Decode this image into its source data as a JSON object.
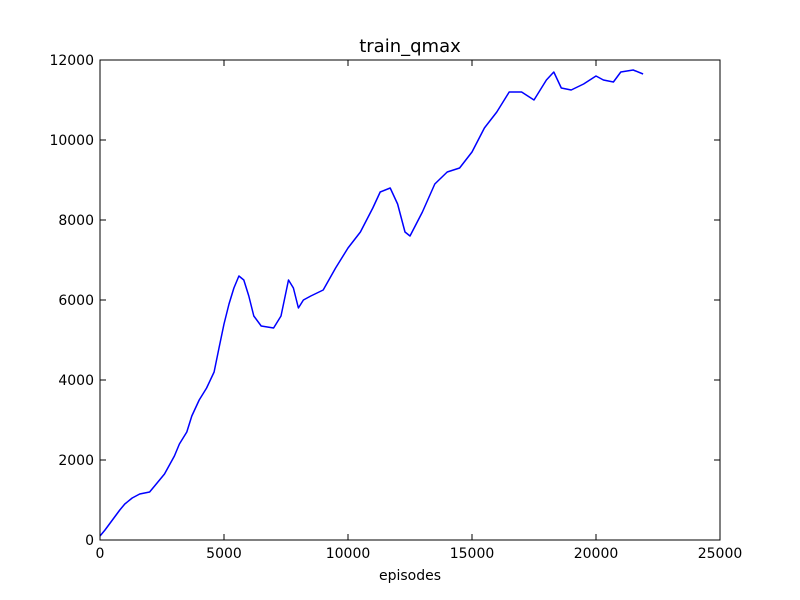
{
  "chart_data": {
    "type": "line",
    "title": "train_qmax",
    "xlabel": "episodes",
    "ylabel": "",
    "xlim": [
      0,
      25000
    ],
    "ylim": [
      0,
      12000
    ],
    "x_ticks": [
      0,
      5000,
      10000,
      15000,
      20000,
      25000
    ],
    "y_ticks": [
      0,
      2000,
      4000,
      6000,
      8000,
      10000,
      12000
    ],
    "x_tick_labels": [
      "0",
      "5000",
      "10000",
      "15000",
      "20000",
      "25000"
    ],
    "y_tick_labels": [
      "0",
      "2000",
      "4000",
      "6000",
      "8000",
      "10000",
      "12000"
    ],
    "grid": false,
    "line_color": "#0000ff",
    "series": [
      {
        "x": [
          0,
          200,
          500,
          800,
          1000,
          1300,
          1600,
          2000,
          2200,
          2600,
          3000,
          3200,
          3500,
          3700,
          4000,
          4300,
          4600,
          4800,
          5000,
          5200,
          5400,
          5600,
          5800,
          6000,
          6200,
          6500,
          7000,
          7300,
          7600,
          7800,
          8000,
          8200,
          8500,
          9000,
          9500,
          10000,
          10500,
          11000,
          11300,
          11700,
          12000,
          12300,
          12500,
          13000,
          13500,
          14000,
          14500,
          15000,
          15500,
          16000,
          16500,
          17000,
          17500,
          18000,
          18300,
          18600,
          19000,
          19500,
          20000,
          20300,
          20700,
          21000,
          21500,
          21900
        ],
        "y": [
          100,
          250,
          500,
          750,
          900,
          1050,
          1150,
          1200,
          1350,
          1650,
          2100,
          2400,
          2700,
          3100,
          3500,
          3800,
          4200,
          4800,
          5400,
          5900,
          6300,
          6600,
          6500,
          6100,
          5600,
          5350,
          5300,
          5600,
          6500,
          6300,
          5800,
          6000,
          6100,
          6250,
          6800,
          7300,
          7700,
          8300,
          8700,
          8800,
          8400,
          7700,
          7600,
          8200,
          8900,
          9200,
          9300,
          9700,
          10300,
          10700,
          11200,
          11200,
          11000,
          11500,
          11700,
          11300,
          11250,
          11400,
          11600,
          11500,
          11450,
          11700,
          11750,
          11650
        ]
      }
    ]
  }
}
